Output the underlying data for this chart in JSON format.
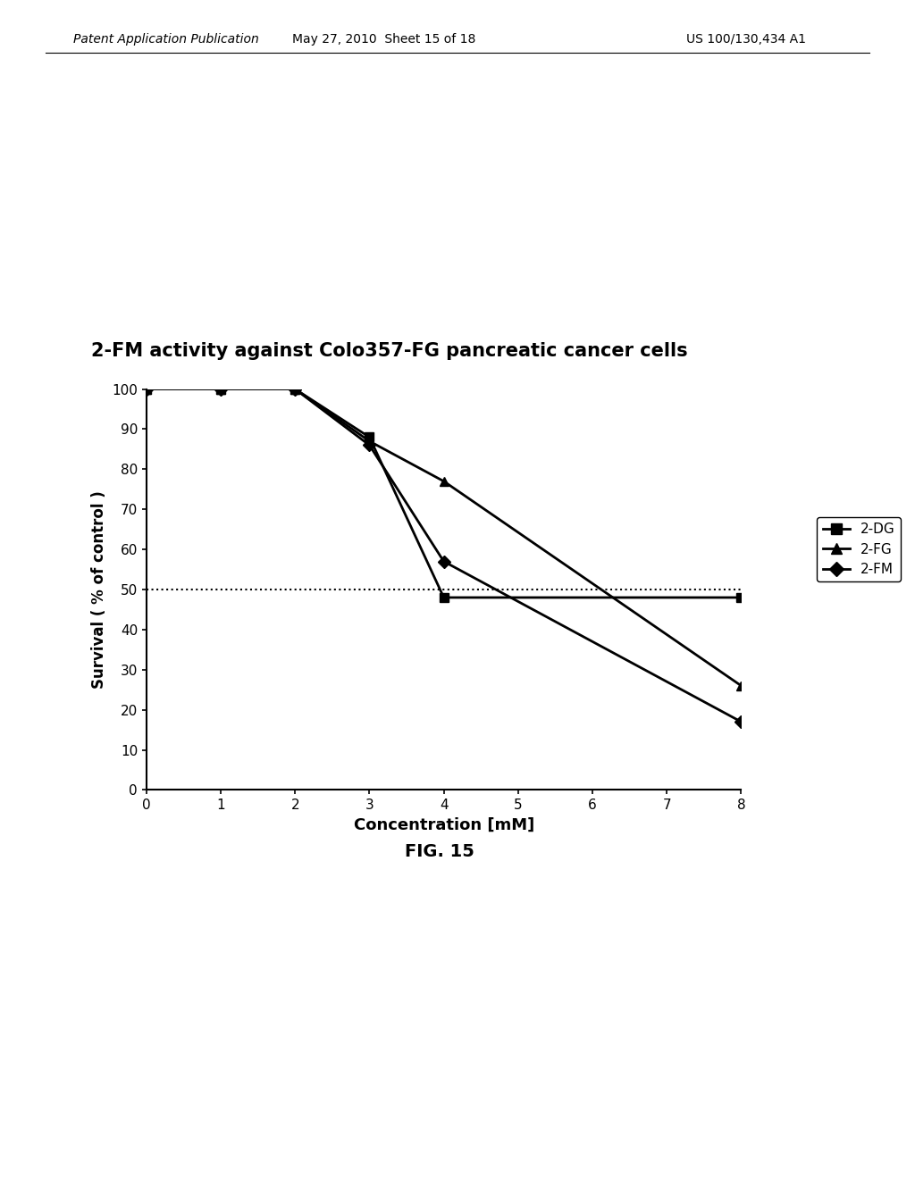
{
  "title": "2-FM activity against Colo357-FG pancreatic cancer cells",
  "xlabel": "Concentration [mM]",
  "ylabel": "Survival ( % of control )",
  "xlim": [
    0,
    8
  ],
  "ylim": [
    0,
    100
  ],
  "xticks": [
    0,
    1,
    2,
    3,
    4,
    5,
    6,
    7,
    8
  ],
  "yticks": [
    0,
    10,
    20,
    30,
    40,
    50,
    60,
    70,
    80,
    90,
    100
  ],
  "hline_y": 50,
  "series": [
    {
      "label": "2-DG",
      "x": [
        0,
        1,
        2,
        3,
        4,
        8
      ],
      "y": [
        100,
        100,
        100,
        88,
        48,
        48
      ],
      "color": "#000000",
      "marker": "s",
      "linewidth": 2.0,
      "markersize": 7
    },
    {
      "label": "2-FG",
      "x": [
        0,
        1,
        2,
        3,
        4,
        8
      ],
      "y": [
        100,
        100,
        100,
        87,
        77,
        26
      ],
      "color": "#000000",
      "marker": "^",
      "linewidth": 2.0,
      "markersize": 7
    },
    {
      "label": "2-FM",
      "x": [
        0,
        1,
        2,
        3,
        4,
        8
      ],
      "y": [
        100,
        100,
        100,
        86,
        57,
        17
      ],
      "color": "#000000",
      "marker": "D",
      "linewidth": 2.0,
      "markersize": 7
    }
  ],
  "background_color": "#ffffff",
  "fig_caption": "FIG. 15",
  "header_left": "Patent Application Publication",
  "header_center": "May 27, 2010  Sheet 15 of 18",
  "header_right": "US 100/130,434 A1"
}
